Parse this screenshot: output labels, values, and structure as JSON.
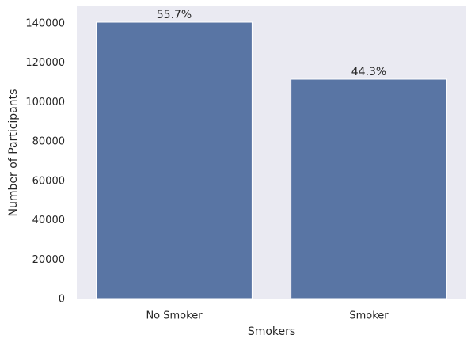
{
  "chart_data": {
    "type": "bar",
    "x_label": "Smokers",
    "y_label": "Number of Participants",
    "categories": [
      "No Smoker",
      "Smoker"
    ],
    "values": [
      140800,
      111840
    ],
    "annotations": [
      "55.7%",
      "44.3%"
    ],
    "color": "#5975a4",
    "ylim": [
      0,
      148850
    ],
    "yticks": [
      0,
      20000,
      40000,
      60000,
      80000,
      100000,
      120000,
      140000
    ],
    "grid": false
  }
}
